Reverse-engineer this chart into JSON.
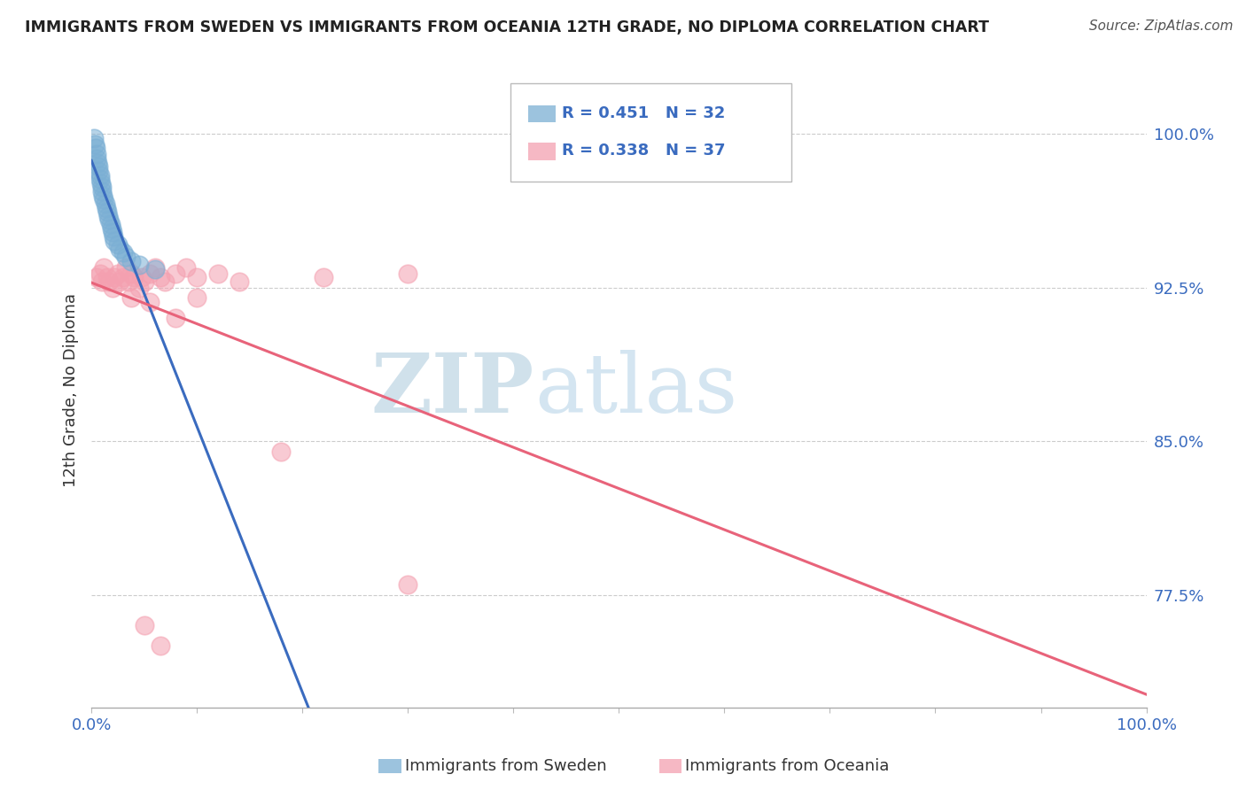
{
  "title": "IMMIGRANTS FROM SWEDEN VS IMMIGRANTS FROM OCEANIA 12TH GRADE, NO DIPLOMA CORRELATION CHART",
  "source": "Source: ZipAtlas.com",
  "ylabel": "12th Grade, No Diploma",
  "sweden_color": "#7bafd4",
  "oceania_color": "#f4a0b0",
  "sweden_line_color": "#3a6bbf",
  "oceania_line_color": "#e8637a",
  "legend_R_sweden": "R = 0.451",
  "legend_N_sweden": "N = 32",
  "legend_R_oceania": "R = 0.338",
  "legend_N_oceania": "N = 37",
  "watermark_zip": "ZIP",
  "watermark_atlas": "atlas",
  "sweden_x": [
    0.002,
    0.003,
    0.004,
    0.005,
    0.005,
    0.006,
    0.007,
    0.007,
    0.008,
    0.008,
    0.009,
    0.01,
    0.01,
    0.011,
    0.012,
    0.013,
    0.014,
    0.015,
    0.016,
    0.017,
    0.018,
    0.019,
    0.02,
    0.021,
    0.022,
    0.025,
    0.027,
    0.03,
    0.033,
    0.038,
    0.045,
    0.06
  ],
  "sweden_y": [
    0.998,
    0.995,
    0.993,
    0.99,
    0.988,
    0.986,
    0.984,
    0.982,
    0.98,
    0.978,
    0.976,
    0.974,
    0.972,
    0.97,
    0.968,
    0.966,
    0.964,
    0.962,
    0.96,
    0.958,
    0.956,
    0.954,
    0.952,
    0.95,
    0.948,
    0.946,
    0.944,
    0.942,
    0.94,
    0.938,
    0.936,
    0.934
  ],
  "oceania_x": [
    0.005,
    0.008,
    0.01,
    0.012,
    0.015,
    0.017,
    0.02,
    0.022,
    0.025,
    0.027,
    0.03,
    0.033,
    0.035,
    0.038,
    0.04,
    0.045,
    0.048,
    0.05,
    0.055,
    0.06,
    0.065,
    0.07,
    0.08,
    0.09,
    0.1,
    0.12,
    0.14,
    0.18,
    0.22,
    0.3,
    0.038,
    0.055,
    0.3,
    0.05,
    0.065,
    0.1,
    0.08
  ],
  "oceania_y": [
    0.93,
    0.932,
    0.928,
    0.935,
    0.93,
    0.928,
    0.925,
    0.93,
    0.932,
    0.928,
    0.93,
    0.935,
    0.928,
    0.932,
    0.93,
    0.925,
    0.93,
    0.928,
    0.932,
    0.935,
    0.93,
    0.928,
    0.932,
    0.935,
    0.93,
    0.932,
    0.928,
    0.845,
    0.93,
    0.932,
    0.92,
    0.918,
    0.78,
    0.76,
    0.75,
    0.92,
    0.91
  ],
  "xlim": [
    0.0,
    1.0
  ],
  "ylim": [
    0.72,
    1.03
  ],
  "yticks": [
    0.775,
    0.85,
    0.925,
    1.0
  ],
  "ytick_labels": [
    "77.5%",
    "85.0%",
    "92.5%",
    "100.0%"
  ]
}
